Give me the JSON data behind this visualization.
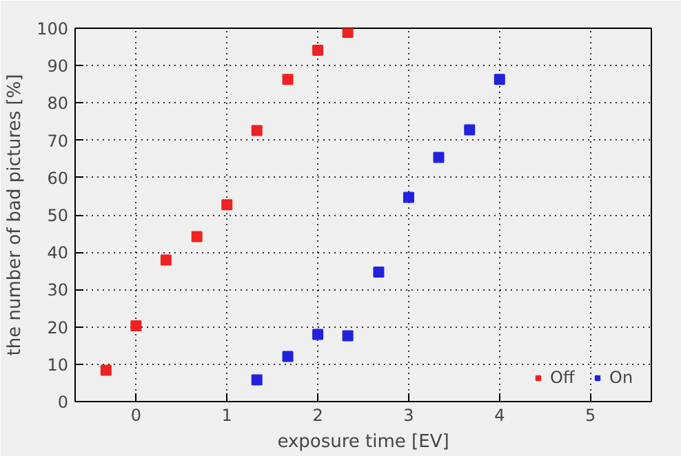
{
  "chart_data": {
    "type": "scatter",
    "xlabel": "exposure time [EV]",
    "ylabel": "the number of bad pictures [%]",
    "xlim": [
      -0.67,
      5.67
    ],
    "xticks": [
      0,
      1,
      2,
      3,
      4,
      5
    ],
    "ylim": [
      0,
      100
    ],
    "yticks": [
      0,
      10,
      20,
      30,
      40,
      50,
      60,
      70,
      80,
      90,
      100
    ],
    "grid": true,
    "legend": "bottom right",
    "marker": "square",
    "series": [
      {
        "name": "Off",
        "color": "#ee2222",
        "x": [
          -0.33,
          0,
          0.33,
          0.67,
          1,
          1.33,
          1.67,
          2,
          2.33
        ],
        "values": [
          8.4,
          20.3,
          37.9,
          44.2,
          52.7,
          72.6,
          86.3,
          94.1,
          98.9
        ]
      },
      {
        "name": "On",
        "color": "#2222dd",
        "x": [
          1.33,
          1.67,
          2,
          2.33,
          2.67,
          3,
          3.33,
          3.67,
          4
        ],
        "values": [
          5.8,
          12.1,
          18.0,
          17.6,
          34.7,
          54.7,
          65.4,
          72.8,
          86.3
        ]
      }
    ]
  }
}
